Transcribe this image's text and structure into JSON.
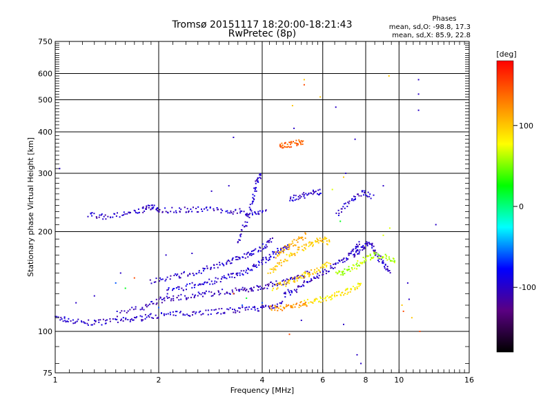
{
  "chart_data": {
    "type": "scatter",
    "title": "Tromsø 20151117 18:20:00-18:21:43",
    "subtitle": "RwPretec (8p)",
    "info": {
      "heading": "Phases",
      "line1": "mean, sd,O: -98.8, 17.3",
      "line2": "mean, sd,X:  85.9, 22.8"
    },
    "xlabel": "Frequency [MHz]",
    "ylabel": "Stationary phase Virtual Height [km]",
    "x_scale": "log",
    "y_scale": "log",
    "xlim": [
      1,
      16
    ],
    "ylim": [
      75,
      750
    ],
    "x_ticks": [
      {
        "value": 1,
        "label": "1"
      },
      {
        "value": 2,
        "label": "2"
      },
      {
        "value": 4,
        "label": "4"
      },
      {
        "value": 6,
        "label": "6"
      },
      {
        "value": 8,
        "label": "8"
      },
      {
        "value": 10,
        "label": "10"
      },
      {
        "value": 16,
        "label": "16"
      }
    ],
    "y_ticks": [
      {
        "value": 75,
        "label": "75"
      },
      {
        "value": 100,
        "label": "100"
      },
      {
        "value": 200,
        "label": "200"
      },
      {
        "value": 300,
        "label": "300"
      },
      {
        "value": 400,
        "label": "400"
      },
      {
        "value": 500,
        "label": "500"
      },
      {
        "value": 600,
        "label": "600"
      },
      {
        "value": 750,
        "label": "750"
      }
    ],
    "major_grid_x": [
      1,
      2,
      4,
      6,
      8,
      10
    ],
    "major_grid_y": [
      100,
      200,
      300,
      400,
      500,
      600
    ],
    "grid": true,
    "colorbar": {
      "label": "[deg]",
      "range": [
        -180,
        180
      ],
      "ticks": [
        {
          "value": 100,
          "label": "100"
        },
        {
          "value": 0,
          "label": "0"
        },
        {
          "value": -100,
          "label": "-100"
        }
      ],
      "gradient": [
        "#000000",
        "#5a0082",
        "#0000ff",
        "#00ffff",
        "#00ff00",
        "#ffff00",
        "#ff8000",
        "#ff0000"
      ]
    },
    "traces": [
      {
        "phase": -100,
        "points": [
          [
            1.0,
            110
          ],
          [
            1.1,
            108
          ],
          [
            1.25,
            106
          ],
          [
            1.4,
            107
          ],
          [
            1.6,
            108
          ],
          [
            1.8,
            110
          ],
          [
            2.0,
            112
          ],
          [
            2.3,
            113
          ],
          [
            2.6,
            114
          ],
          [
            3.0,
            115
          ],
          [
            3.4,
            116
          ],
          [
            3.8,
            117
          ],
          [
            4.2,
            119
          ],
          [
            4.6,
            121
          ]
        ]
      },
      {
        "phase": -105,
        "points": [
          [
            1.5,
            113
          ],
          [
            1.8,
            118
          ],
          [
            2.0,
            124
          ],
          [
            2.2,
            126
          ],
          [
            2.5,
            128
          ],
          [
            2.8,
            130
          ],
          [
            3.2,
            132
          ],
          [
            3.5,
            133
          ],
          [
            3.8,
            135
          ],
          [
            4.2,
            138
          ],
          [
            4.6,
            141
          ],
          [
            5.0,
            145
          ],
          [
            5.5,
            150
          ]
        ]
      },
      {
        "phase": -95,
        "points": [
          [
            2.1,
            132
          ],
          [
            2.4,
            136
          ],
          [
            2.7,
            140
          ],
          [
            3.0,
            143
          ],
          [
            3.3,
            148
          ],
          [
            3.6,
            152
          ],
          [
            3.9,
            160
          ],
          [
            4.2,
            168
          ],
          [
            4.5,
            175
          ],
          [
            4.8,
            182
          ]
        ]
      },
      {
        "phase": -100,
        "points": [
          [
            1.9,
            142
          ],
          [
            2.2,
            146
          ],
          [
            2.5,
            150
          ],
          [
            2.8,
            155
          ],
          [
            3.1,
            160
          ],
          [
            3.4,
            166
          ],
          [
            3.7,
            172
          ],
          [
            4.0,
            180
          ],
          [
            4.3,
            190
          ]
        ]
      },
      {
        "phase": -100,
        "points": [
          [
            1.25,
            225
          ],
          [
            1.4,
            222
          ],
          [
            1.6,
            225
          ],
          [
            1.8,
            232
          ],
          [
            1.9,
            238
          ],
          [
            2.0,
            233
          ],
          [
            2.3,
            232
          ],
          [
            2.6,
            234
          ],
          [
            3.0,
            232
          ],
          [
            3.4,
            230
          ],
          [
            3.8,
            228
          ],
          [
            4.1,
            232
          ]
        ]
      },
      {
        "phase": -100,
        "points": [
          [
            3.4,
            185
          ],
          [
            3.6,
            215
          ],
          [
            3.75,
            245
          ],
          [
            3.85,
            280
          ],
          [
            3.95,
            300
          ]
        ]
      },
      {
        "phase": -100,
        "points": [
          [
            4.6,
            128
          ],
          [
            5.0,
            134
          ],
          [
            5.5,
            142
          ],
          [
            6.0,
            150
          ],
          [
            6.5,
            158
          ],
          [
            7.0,
            166
          ],
          [
            7.4,
            175
          ],
          [
            7.7,
            185
          ]
        ]
      },
      {
        "phase": -100,
        "points": [
          [
            4.8,
            250
          ],
          [
            5.2,
            256
          ],
          [
            5.6,
            262
          ],
          [
            6.0,
            265
          ]
        ]
      },
      {
        "phase": -100,
        "points": [
          [
            6.6,
            225
          ],
          [
            7.2,
            248
          ],
          [
            7.8,
            262
          ],
          [
            8.4,
            255
          ]
        ]
      },
      {
        "phase": -100,
        "points": [
          [
            7.4,
            170
          ],
          [
            7.8,
            178
          ],
          [
            8.2,
            186
          ],
          [
            8.6,
            172
          ],
          [
            9.0,
            160
          ],
          [
            9.4,
            152
          ]
        ]
      },
      {
        "phase": 100,
        "points": [
          [
            4.2,
            150
          ],
          [
            4.5,
            160
          ],
          [
            4.9,
            172
          ],
          [
            5.3,
            180
          ],
          [
            5.7,
            186
          ],
          [
            6.0,
            190
          ],
          [
            6.3,
            185
          ]
        ]
      },
      {
        "phase": 95,
        "points": [
          [
            4.3,
            135
          ],
          [
            4.7,
            140
          ],
          [
            5.1,
            145
          ],
          [
            5.5,
            150
          ],
          [
            5.9,
            155
          ],
          [
            6.3,
            160
          ]
        ]
      },
      {
        "phase": 85,
        "points": [
          [
            5.3,
            122
          ],
          [
            5.8,
            124
          ],
          [
            6.3,
            127
          ],
          [
            6.8,
            130
          ],
          [
            7.3,
            134
          ],
          [
            7.8,
            139
          ]
        ]
      },
      {
        "phase": 60,
        "points": [
          [
            6.6,
            148
          ],
          [
            7.0,
            152
          ],
          [
            7.5,
            158
          ],
          [
            8.0,
            165
          ],
          [
            8.5,
            170
          ],
          [
            9.2,
            168
          ],
          [
            9.8,
            162
          ]
        ]
      },
      {
        "phase": 110,
        "points": [
          [
            4.4,
            170
          ],
          [
            4.7,
            178
          ],
          [
            5.0,
            186
          ],
          [
            5.4,
            196
          ]
        ]
      },
      {
        "phase": 140,
        "points": [
          [
            4.5,
            360
          ],
          [
            4.7,
            365
          ],
          [
            5.0,
            370
          ],
          [
            5.3,
            375
          ]
        ]
      },
      {
        "phase": 120,
        "points": [
          [
            4.2,
            117
          ],
          [
            4.6,
            118
          ],
          [
            5.0,
            120
          ],
          [
            5.4,
            121
          ]
        ]
      }
    ],
    "scatter": [
      {
        "phase": -100,
        "points": [
          [
            1.03,
            310
          ],
          [
            3.3,
            385
          ],
          [
            4.95,
            410
          ],
          [
            6.55,
            475
          ],
          [
            7.45,
            380
          ],
          [
            7.55,
            85
          ],
          [
            7.75,
            80
          ],
          [
            11.4,
            575
          ],
          [
            11.4,
            520
          ],
          [
            11.4,
            465
          ],
          [
            3.2,
            275
          ],
          [
            2.85,
            265
          ],
          [
            1.15,
            122
          ],
          [
            1.3,
            128
          ],
          [
            1.55,
            150
          ],
          [
            2.1,
            170
          ],
          [
            2.5,
            172
          ],
          [
            9.0,
            275
          ],
          [
            10.6,
            140
          ],
          [
            10.7,
            125
          ],
          [
            6.9,
            105
          ],
          [
            5.2,
            108
          ],
          [
            12.8,
            210
          ],
          [
            7.0,
            300
          ]
        ]
      },
      {
        "phase": 100,
        "points": [
          [
            5.3,
            575
          ],
          [
            9.35,
            590
          ],
          [
            4.9,
            480
          ],
          [
            5.9,
            510
          ],
          [
            6.9,
            292
          ],
          [
            10.2,
            120
          ],
          [
            10.9,
            110
          ]
        ]
      },
      {
        "phase": 150,
        "points": [
          [
            5.3,
            555
          ],
          [
            1.7,
            145
          ],
          [
            3.3,
            130
          ],
          [
            4.8,
            98
          ],
          [
            10.3,
            115
          ],
          [
            11.5,
            100
          ]
        ]
      },
      {
        "phase": 20,
        "points": [
          [
            6.75,
            215
          ],
          [
            1.6,
            135
          ],
          [
            3.6,
            126
          ]
        ]
      },
      {
        "phase": -60,
        "points": [
          [
            1.5,
            140
          ],
          [
            2.0,
            118
          ],
          [
            3.5,
            120
          ],
          [
            4.0,
            122
          ]
        ]
      },
      {
        "phase": 70,
        "points": [
          [
            6.4,
            268
          ],
          [
            9.4,
            205
          ],
          [
            9.0,
            195
          ]
        ]
      }
    ]
  }
}
